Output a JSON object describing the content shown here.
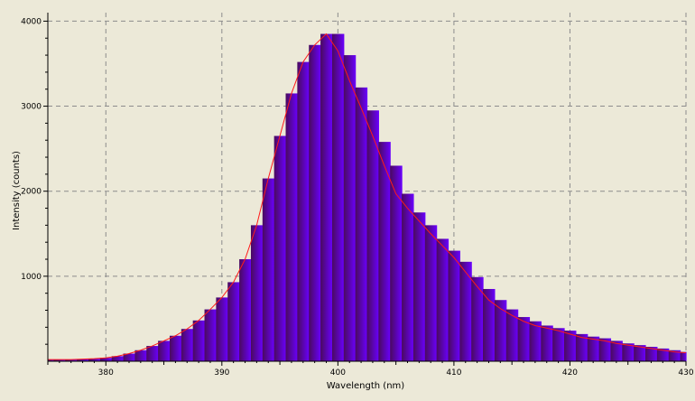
{
  "chart_data": {
    "type": "area",
    "xlabel": "Wavelength (nm)",
    "ylabel": "Intensity (counts)",
    "xlim": [
      375,
      430
    ],
    "ylim": [
      0,
      4100
    ],
    "x_ticks": [
      380,
      390,
      400,
      410,
      420,
      430
    ],
    "y_ticks": [
      1000,
      2000,
      3000,
      4000
    ],
    "grid": true,
    "grid_style": "dashed",
    "colors": {
      "background": "#ece9d8",
      "bars_start": "#4a0a5e",
      "bars_end": "#6a00ff",
      "line": "#ff1a1a",
      "grid": "#8c8c8c",
      "axis": "#000000"
    },
    "series": [
      {
        "kind": "histogram",
        "x": [
          375,
          376,
          377,
          378,
          379,
          380,
          381,
          382,
          383,
          384,
          385,
          386,
          387,
          388,
          389,
          390,
          391,
          392,
          393,
          394,
          395,
          396,
          397,
          398,
          399,
          400,
          401,
          402,
          403,
          404,
          405,
          406,
          407,
          408,
          409,
          410,
          411,
          412,
          413,
          414,
          415,
          416,
          417,
          418,
          419,
          420,
          421,
          422,
          423,
          424,
          425,
          426,
          427,
          428,
          429,
          430
        ],
        "values": [
          20,
          20,
          20,
          25,
          30,
          40,
          60,
          90,
          130,
          180,
          240,
          300,
          380,
          480,
          610,
          750,
          930,
          1200,
          1600,
          2150,
          2650,
          3150,
          3520,
          3720,
          3850,
          3850,
          3600,
          3220,
          2950,
          2580,
          2300,
          1970,
          1750,
          1600,
          1440,
          1300,
          1170,
          990,
          850,
          720,
          610,
          520,
          470,
          420,
          390,
          360,
          320,
          290,
          270,
          240,
          210,
          190,
          170,
          150,
          130,
          110
        ]
      },
      {
        "kind": "line",
        "x": [
          375,
          376,
          377,
          378,
          379,
          380,
          381,
          382,
          383,
          384,
          385,
          386,
          387,
          388,
          389,
          390,
          391,
          392,
          393,
          394,
          395,
          396,
          397,
          398,
          399,
          400,
          401,
          402,
          403,
          404,
          405,
          406,
          407,
          408,
          409,
          410,
          411,
          412,
          413,
          414,
          415,
          416,
          417,
          418,
          419,
          420,
          421,
          422,
          423,
          424,
          425,
          426,
          427,
          428,
          429,
          430
        ],
        "values": [
          20,
          20,
          20,
          25,
          30,
          40,
          60,
          90,
          130,
          180,
          240,
          300,
          380,
          480,
          610,
          750,
          930,
          1200,
          1600,
          2150,
          2650,
          3150,
          3520,
          3720,
          3850,
          3650,
          3300,
          2980,
          2650,
          2300,
          1970,
          1800,
          1650,
          1500,
          1360,
          1220,
          1050,
          880,
          720,
          620,
          540,
          470,
          420,
          390,
          360,
          320,
          280,
          260,
          240,
          210,
          190,
          170,
          150,
          130,
          110,
          100
        ]
      }
    ]
  }
}
